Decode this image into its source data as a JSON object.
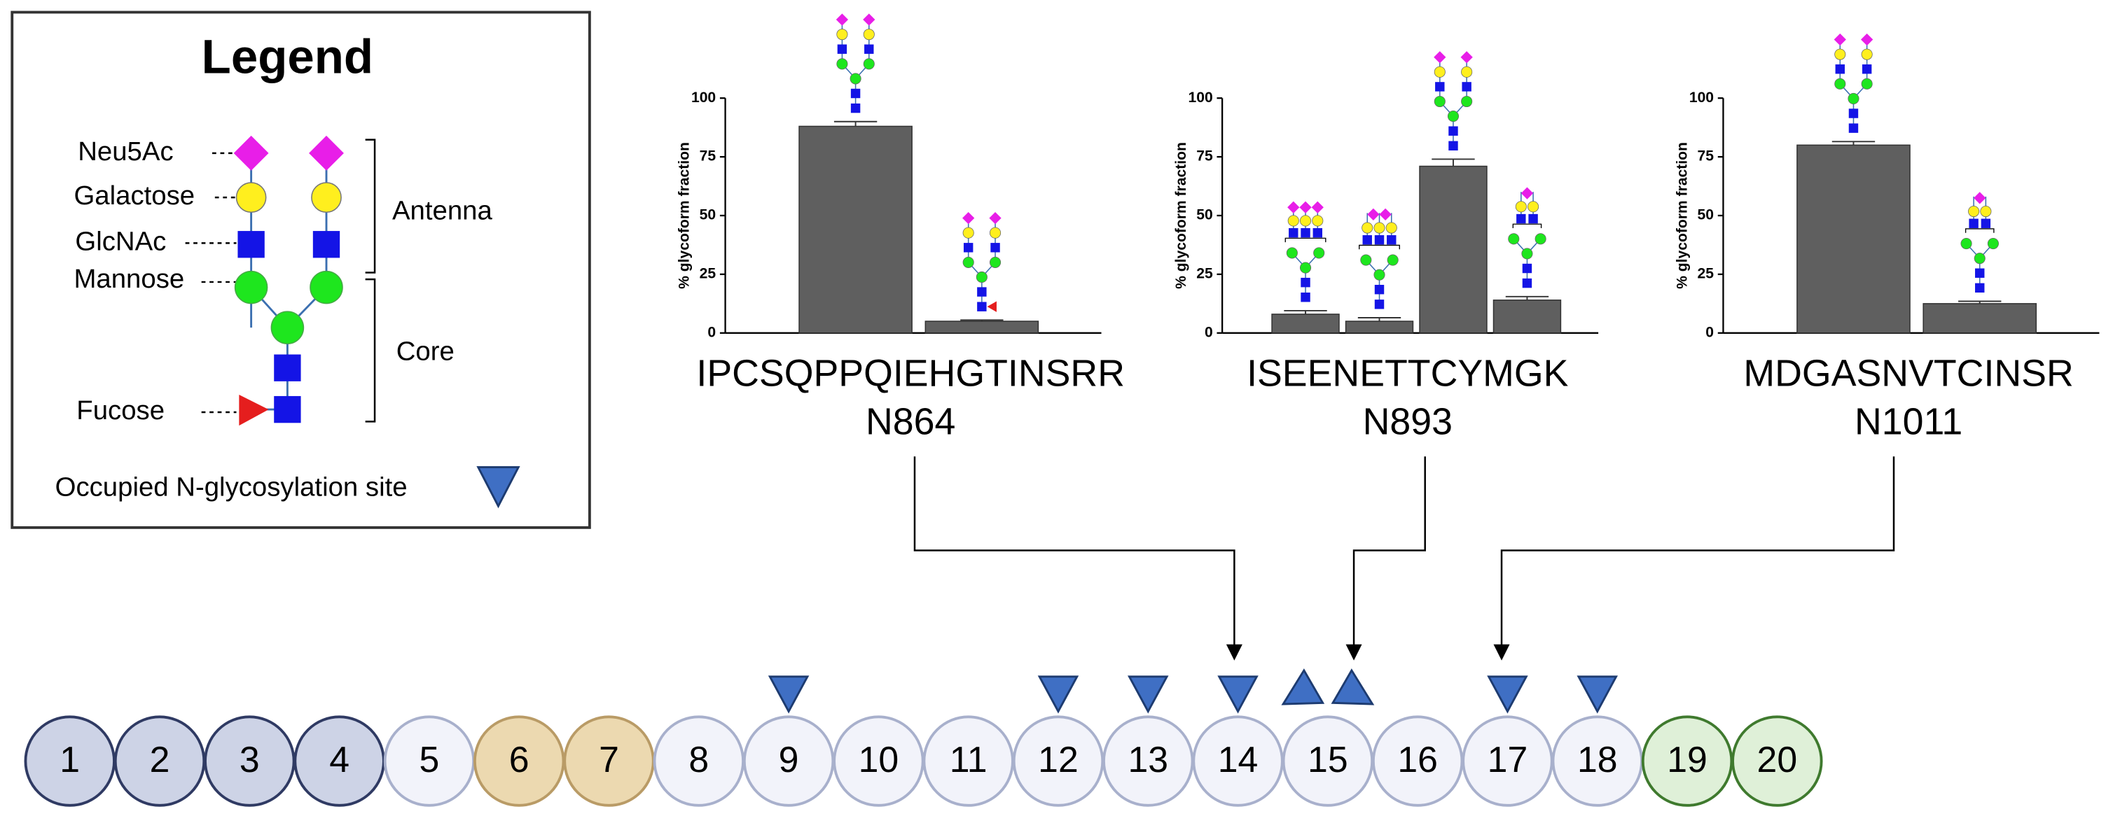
{
  "legend": {
    "title": "Legend",
    "items": [
      "Neu5Ac",
      "Galactose",
      "GlcNAc",
      "Mannose",
      "Fucose"
    ],
    "groups": [
      "Antenna",
      "Core"
    ],
    "site_label": "Occupied N-glycosylation site"
  },
  "chart_data": [
    {
      "type": "bar",
      "title": "IPCSQPPQIEHGTINSRR",
      "subtitle": "N864",
      "y_label": "% glycoform fraction",
      "categories": [
        null,
        null
      ],
      "values": [
        88,
        5
      ],
      "errors": [
        2,
        0.5
      ],
      "color": "#5f5f5f",
      "ylim": [
        0,
        100
      ],
      "yticks": [
        0,
        25,
        50,
        75,
        100
      ]
    },
    {
      "type": "bar",
      "title": "ISEENETTCYMGK",
      "subtitle": "N893",
      "y_label": "% glycoform fraction",
      "categories": [
        null,
        null,
        null,
        null
      ],
      "values": [
        8,
        5,
        71,
        14
      ],
      "errors": [
        1.5,
        1.5,
        3,
        1.5
      ],
      "color": "#5f5f5f",
      "ylim": [
        0,
        100
      ],
      "yticks": [
        0,
        25,
        50,
        75,
        100
      ]
    },
    {
      "type": "bar",
      "title": "MDGASNVTCINSR",
      "subtitle": "N1011",
      "y_label": "% glycoform fraction",
      "categories": [
        null,
        null
      ],
      "values": [
        80,
        12.5
      ],
      "errors": [
        1.5,
        1
      ],
      "color": "#5f5f5f",
      "ylim": [
        0,
        100
      ],
      "yticks": [
        0,
        25,
        50,
        75,
        100
      ]
    }
  ],
  "domains": [
    1,
    2,
    3,
    4,
    5,
    6,
    7,
    8,
    9,
    10,
    11,
    12,
    13,
    14,
    15,
    16,
    17,
    18,
    19,
    20
  ]
}
